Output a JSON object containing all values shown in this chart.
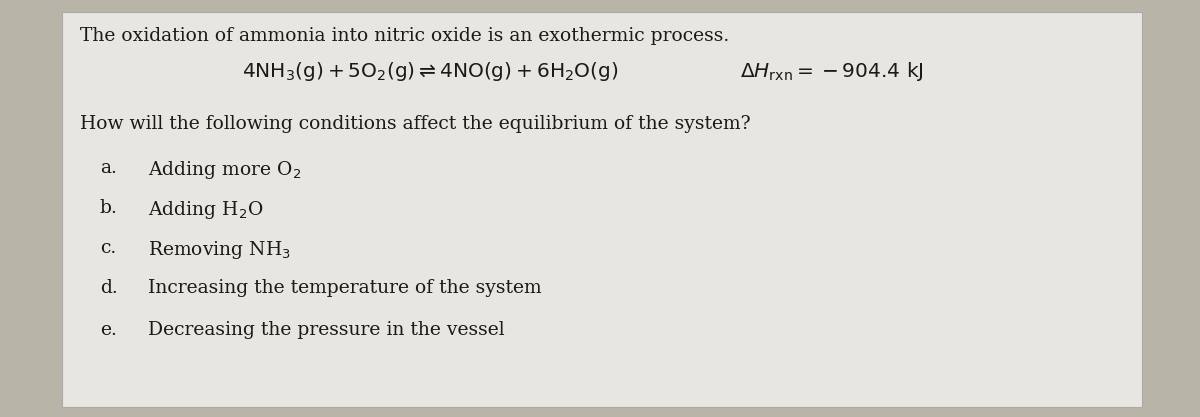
{
  "outer_bg": "#b8b4a8",
  "paper_bg": "#e8e6e0",
  "text_color": "#1a1a1a",
  "title_text": "The oxidation of ammonia into nitric oxide is an exothermic process.",
  "equation_str": "$\\mathrm{4NH_3(g) + 5O_2(g) \\rightleftharpoons 4NO(g) + 6H_2O(g)}$",
  "delta_h_str": "$\\Delta H_{\\mathrm{rxn}} = -904.4\\ \\mathrm{kJ}$",
  "question_text": "How will the following conditions affect the equilibrium of the system?",
  "item_labels": [
    "a.",
    "b.",
    "c.",
    "d.",
    "e."
  ],
  "item_texts": [
    "Adding more O$_2$",
    "Adding H$_2$O",
    "Removing NH$_3$",
    "Increasing the temperature of the system",
    "Decreasing the pressure in the vessel"
  ],
  "figsize": [
    12.0,
    4.17
  ],
  "dpi": 100,
  "title_fontsize": 13.5,
  "eq_fontsize": 14.5,
  "question_fontsize": 13.5,
  "item_fontsize": 13.5,
  "label_fontsize": 13.5
}
